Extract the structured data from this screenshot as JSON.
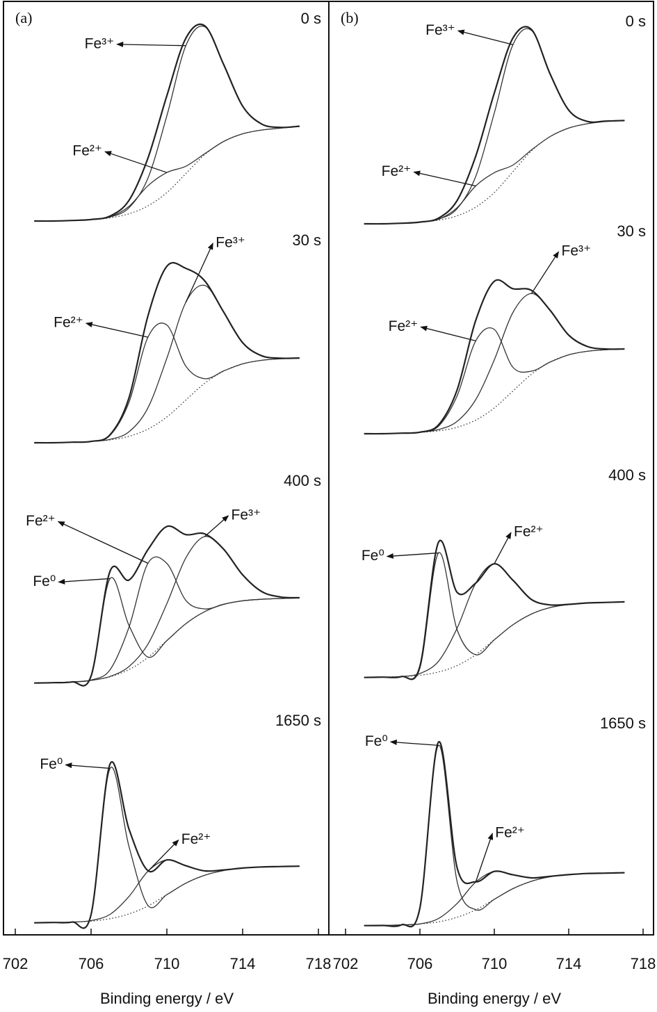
{
  "chart_data": [
    {
      "type": "line",
      "panel_label": "(a)",
      "xlabel": "Binding energy / eV",
      "x": [
        703,
        704,
        705,
        706,
        707,
        708,
        709,
        710,
        711,
        712,
        713,
        714,
        715,
        716,
        717
      ],
      "xlim": [
        702,
        718
      ],
      "xticks": [
        702,
        706,
        710,
        714,
        718
      ],
      "ylim": [
        0,
        1.1
      ],
      "spectra": [
        {
          "label": "0 s",
          "series": [
            {
              "style": "dotted",
              "color": "#333333",
              "values": [
                0,
                0,
                0.003,
                0.008,
                0.017,
                0.038,
                0.08,
                0.15,
                0.25,
                0.35,
                0.42,
                0.46,
                0.48,
                0.49,
                0.5
              ]
            },
            {
              "name": "Fe³⁺",
              "style": "thin",
              "color": "#333333",
              "values": [
                0,
                0,
                0.003,
                0.008,
                0.021,
                0.07,
                0.226,
                0.555,
                0.925,
                1.025,
                0.825,
                0.606,
                0.512,
                0.494,
                0.5
              ]
            },
            {
              "name": "Fe²⁺",
              "style": "thin",
              "color": "#333333",
              "values": [
                0,
                0,
                0.003,
                0.008,
                0.022,
                0.077,
                0.186,
                0.256,
                0.289,
                0.355,
                0.42,
                0.46,
                0.48,
                0.49,
                0.5
              ]
            },
            {
              "style": "thick",
              "color": "#222222",
              "values": [
                0,
                0,
                0.003,
                0.008,
                0.026,
                0.109,
                0.332,
                0.661,
                0.964,
                1.03,
                0.825,
                0.606,
                0.512,
                0.494,
                0.5
              ]
            }
          ]
        },
        {
          "label": "30 s",
          "series": [
            {
              "style": "dotted",
              "color": "#333333",
              "values": [
                0,
                0,
                0.003,
                0.007,
                0.015,
                0.034,
                0.072,
                0.136,
                0.225,
                0.314,
                0.378,
                0.416,
                0.435,
                0.443,
                0.447
              ]
            },
            {
              "name": "Fe²⁺",
              "style": "thin",
              "color": "#333333",
              "values": [
                0,
                0,
                0.003,
                0.007,
                0.039,
                0.213,
                0.557,
                0.621,
                0.404,
                0.338,
                0.379,
                0.416,
                0.435,
                0.443,
                0.447
              ]
            },
            {
              "name": "Fe³⁺",
              "style": "thin",
              "color": "#333333",
              "values": [
                0,
                0,
                0.003,
                0.007,
                0.018,
                0.058,
                0.184,
                0.446,
                0.741,
                0.83,
                0.688,
                0.528,
                0.459,
                0.446,
                0.447
              ]
            },
            {
              "style": "thick",
              "color": "#222222",
              "values": [
                0,
                0,
                0.003,
                0.007,
                0.042,
                0.237,
                0.669,
                0.931,
                0.92,
                0.854,
                0.689,
                0.528,
                0.459,
                0.446,
                0.447
              ]
            }
          ]
        },
        {
          "label": "400 s",
          "series": [
            {
              "style": "dotted",
              "color": "#333333",
              "values": [
                0.001,
                0.003,
                0.007,
                0.015,
                0.034,
                0.072,
                0.136,
                0.225,
                0.314,
                0.378,
                0.416,
                0.435,
                0.443,
                0.447,
                0.45
              ]
            },
            {
              "name": "Fe⁰",
              "style": "thin",
              "color": "#333333",
              "values": [
                0.001,
                0.003,
                0.007,
                0.036,
                0.552,
                0.305,
                0.138,
                0.225,
                0.314,
                0.378,
                0.416,
                0.435,
                0.443,
                0.447,
                0.45
              ]
            },
            {
              "name": "Fe²⁺",
              "style": "thin",
              "color": "#333333",
              "values": [
                0.001,
                0.003,
                0.007,
                0.017,
                0.071,
                0.295,
                0.633,
                0.632,
                0.437,
                0.392,
                0.417,
                0.435,
                0.443,
                0.447,
                0.45
              ]
            },
            {
              "name": "Fe³⁺",
              "style": "thin",
              "color": "#333333",
              "values": [
                0.001,
                0.003,
                0.007,
                0.015,
                0.036,
                0.088,
                0.206,
                0.42,
                0.661,
                0.774,
                0.706,
                0.572,
                0.484,
                0.455,
                0.451
              ]
            },
            {
              "style": "thick",
              "color": "#222222",
              "values": [
                0.001,
                0.003,
                0.007,
                0.038,
                0.591,
                0.544,
                0.705,
                0.827,
                0.784,
                0.788,
                0.707,
                0.572,
                0.484,
                0.455,
                0.451
              ]
            }
          ]
        },
        {
          "label": "1650 s",
          "series": [
            {
              "style": "dotted",
              "color": "#333333",
              "values": [
                0.001,
                0.003,
                0.005,
                0.01,
                0.023,
                0.048,
                0.09,
                0.15,
                0.21,
                0.252,
                0.277,
                0.29,
                0.296,
                0.298,
                0.3
              ]
            },
            {
              "name": "Fe⁰",
              "style": "thin",
              "color": "#333333",
              "values": [
                0.001,
                0.003,
                0.005,
                0.042,
                0.816,
                0.404,
                0.093,
                0.15,
                0.21,
                0.252,
                0.277,
                0.29,
                0.296,
                0.298,
                0.3
              ]
            },
            {
              "name": "Fe²⁺",
              "style": "thin",
              "color": "#333333",
              "values": [
                0.001,
                0.003,
                0.005,
                0.013,
                0.046,
                0.14,
                0.273,
                0.333,
                0.302,
                0.275,
                0.28,
                0.29,
                0.296,
                0.298,
                0.3
              ]
            },
            {
              "style": "thick",
              "color": "#222222",
              "values": [
                0.001,
                0.003,
                0.005,
                0.045,
                0.839,
                0.496,
                0.276,
                0.333,
                0.302,
                0.275,
                0.28,
                0.29,
                0.296,
                0.298,
                0.3
              ]
            }
          ]
        }
      ]
    },
    {
      "type": "line",
      "panel_label": "(b)",
      "xlabel": "Binding energy / eV",
      "x": [
        703,
        704,
        705,
        706,
        707,
        708,
        709,
        710,
        711,
        712,
        713,
        714,
        715,
        716,
        717
      ],
      "xlim": [
        702,
        718
      ],
      "xticks": [
        702,
        706,
        710,
        714,
        718
      ],
      "ylim": [
        0,
        1.1
      ],
      "spectra": [
        {
          "label": "0 s",
          "series": [
            {
              "style": "dotted",
              "color": "#333333",
              "values": [
                0,
                0,
                0.003,
                0.009,
                0.019,
                0.042,
                0.088,
                0.165,
                0.275,
                0.385,
                0.46,
                0.505,
                0.528,
                0.54,
                0.545
              ]
            },
            {
              "name": "Fe³⁺",
              "style": "thin",
              "color": "#333333",
              "values": [
                0,
                0,
                0.003,
                0.009,
                0.025,
                0.08,
                0.25,
                0.585,
                0.945,
                1.02,
                0.79,
                0.6,
                0.54,
                0.542,
                0.545
              ]
            },
            {
              "name": "Fe²⁺",
              "style": "thin",
              "color": "#333333",
              "values": [
                0,
                0,
                0.003,
                0.009,
                0.024,
                0.085,
                0.2,
                0.27,
                0.31,
                0.39,
                0.46,
                0.505,
                0.528,
                0.54,
                0.545
              ]
            },
            {
              "style": "thick",
              "color": "#222222",
              "values": [
                0,
                0,
                0.003,
                0.009,
                0.03,
                0.123,
                0.357,
                0.69,
                0.98,
                1.025,
                0.79,
                0.6,
                0.54,
                0.542,
                0.545
              ]
            }
          ]
        },
        {
          "label": "30 s",
          "series": [
            {
              "style": "dotted",
              "color": "#333333",
              "values": [
                0,
                0,
                0.003,
                0.007,
                0.015,
                0.034,
                0.072,
                0.136,
                0.225,
                0.314,
                0.378,
                0.416,
                0.435,
                0.443,
                0.447
              ]
            },
            {
              "name": "Fe²⁺",
              "style": "thin",
              "color": "#333333",
              "values": [
                0,
                0,
                0.003,
                0.007,
                0.04,
                0.2,
                0.49,
                0.55,
                0.35,
                0.33,
                0.378,
                0.416,
                0.435,
                0.443,
                0.447
              ]
            },
            {
              "name": "Fe³⁺",
              "style": "thin",
              "color": "#333333",
              "values": [
                0,
                0,
                0.003,
                0.008,
                0.022,
                0.065,
                0.18,
                0.39,
                0.64,
                0.74,
                0.65,
                0.52,
                0.46,
                0.447,
                0.447
              ]
            },
            {
              "style": "thick",
              "color": "#222222",
              "values": [
                0,
                0,
                0.003,
                0.008,
                0.047,
                0.231,
                0.598,
                0.804,
                0.765,
                0.756,
                0.651,
                0.52,
                0.46,
                0.447,
                0.447
              ]
            }
          ]
        },
        {
          "label": "400 s",
          "series": [
            {
              "style": "dotted",
              "color": "#333333",
              "values": [
                0.001,
                0.003,
                0.006,
                0.013,
                0.03,
                0.064,
                0.121,
                0.2,
                0.279,
                0.336,
                0.37,
                0.386,
                0.394,
                0.397,
                0.4
              ]
            },
            {
              "name": "Fe⁰",
              "style": "thin",
              "color": "#333333",
              "values": [
                0.001,
                0.003,
                0.006,
                0.051,
                0.658,
                0.253,
                0.121,
                0.2,
                0.279,
                0.336,
                0.37,
                0.386,
                0.394,
                0.397,
                0.4
              ]
            },
            {
              "name": "Fe²⁺",
              "style": "thin",
              "color": "#333333",
              "values": [
                0.001,
                0.003,
                0.006,
                0.022,
                0.087,
                0.261,
                0.499,
                0.601,
                0.514,
                0.412,
                0.384,
                0.387,
                0.394,
                0.397,
                0.4
              ]
            },
            {
              "style": "thick",
              "color": "#222222",
              "values": [
                0.001,
                0.003,
                0.006,
                0.06,
                0.715,
                0.45,
                0.499,
                0.601,
                0.514,
                0.412,
                0.384,
                0.387,
                0.394,
                0.397,
                0.4
              ]
            }
          ]
        },
        {
          "label": "1650 s",
          "series": [
            {
              "style": "dotted",
              "color": "#333333",
              "values": [
                0.001,
                0.002,
                0.005,
                0.01,
                0.021,
                0.045,
                0.084,
                0.14,
                0.196,
                0.235,
                0.259,
                0.27,
                0.276,
                0.278,
                0.28
              ]
            },
            {
              "name": "Fe⁰",
              "style": "thin",
              "color": "#333333",
              "values": [
                0.001,
                0.002,
                0.005,
                0.095,
                0.952,
                0.233,
                0.085,
                0.14,
                0.196,
                0.235,
                0.259,
                0.27,
                0.276,
                0.278,
                0.28
              ]
            },
            {
              "name": "Fe²⁺",
              "style": "thin",
              "color": "#333333",
              "values": [
                0.001,
                0.002,
                0.005,
                0.01,
                0.039,
                0.118,
                0.231,
                0.287,
                0.269,
                0.253,
                0.261,
                0.27,
                0.276,
                0.278,
                0.28
              ]
            },
            {
              "style": "thick",
              "color": "#222222",
              "values": [
                0.001,
                0.002,
                0.005,
                0.095,
                0.97,
                0.306,
                0.232,
                0.287,
                0.269,
                0.253,
                0.261,
                0.27,
                0.276,
                0.278,
                0.28
              ]
            }
          ]
        }
      ]
    }
  ]
}
